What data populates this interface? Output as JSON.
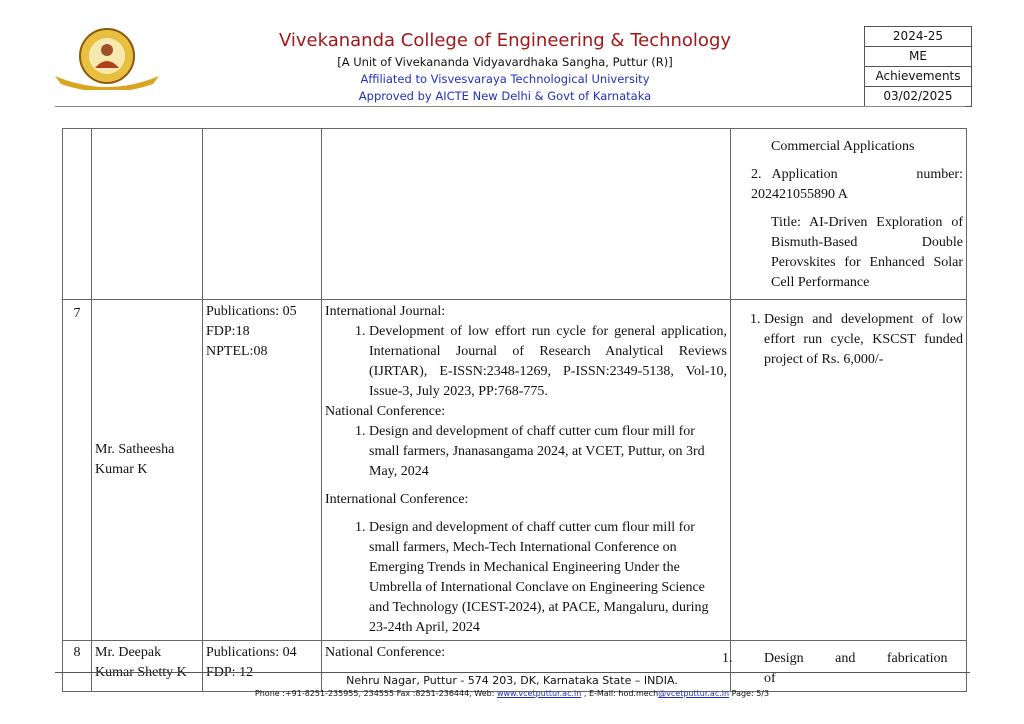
{
  "header": {
    "college": "Vivekananda College of Engineering & Technology",
    "unit": "[A Unit of  Vivekananda Vidyavardhaka Sangha, Puttur (R)]",
    "affiliation": "Affiliated to Visvesvaraya Technological University",
    "approval": "Approved by AICTE New Delhi & Govt of Karnataka",
    "box": [
      "2024-25",
      "ME",
      "Achievements",
      "03/02/2025"
    ]
  },
  "rows": [
    {
      "no": "",
      "name": "",
      "pubs": "",
      "details": [],
      "projects_pre": "Commercial Applications",
      "projects": [
        "Application number: 202421055890 A"
      ],
      "projects_post": "Title: AI-Driven Exploration of Bismuth-Based Double Perovskites for Enhanced Solar Cell Performance"
    },
    {
      "no": "7",
      "name": "Mr. Satheesha Kumar K",
      "pubs": [
        "Publications: 05",
        "FDP:18",
        "NPTEL:08"
      ],
      "details": [
        {
          "heading": "International Journal:",
          "items": [
            "Development of low effort run cycle for general application, International Journal of Research Analytical Reviews (IJRTAR), E-ISSN:2348-1269, P-ISSN:2349-5138, Vol-10, Issue-3, July 2023, PP:768-775."
          ]
        },
        {
          "heading": "National Conference:",
          "items": [
            "Design and development of chaff cutter cum flour mill for small farmers, Jnanasangama 2024, at VCET, Puttur, on 3rd May, 2024"
          ]
        },
        {
          "heading": "International Conference:",
          "items": [
            "Design and development of chaff cutter cum flour mill for small farmers, Mech-Tech International Conference on Emerging Trends in Mechanical Engineering Under the Umbrella of International Conclave on Engineering Science and Technology (ICEST-2024), at PACE, Mangaluru, during 23-24th April, 2024"
          ]
        }
      ],
      "projects": [
        "Design and development of low effort run cycle, KSCST funded project of Rs. 6,000/-"
      ]
    },
    {
      "no": "8",
      "name": "Mr. Deepak Kumar Shetty K",
      "pubs": [
        "Publications: 04",
        "FDP: 12"
      ],
      "details": [
        {
          "heading": "National Conference:",
          "items": []
        }
      ],
      "projects": [
        "Design and fabrication of"
      ]
    }
  ],
  "footer": {
    "address": "Nehru Nagar, Puttur - 574 203, DK, Karnataka State – INDIA.",
    "phone": "Phone :+91-8251-235955, 234555  Fax :8251-236444, Web: ",
    "web": "www.vcetputtur.ac.in",
    "email_pre": " , E-Mail: hod.mech",
    "email_link": "@vcetputtur.ac.in",
    "page": "  Page: 5/3"
  }
}
